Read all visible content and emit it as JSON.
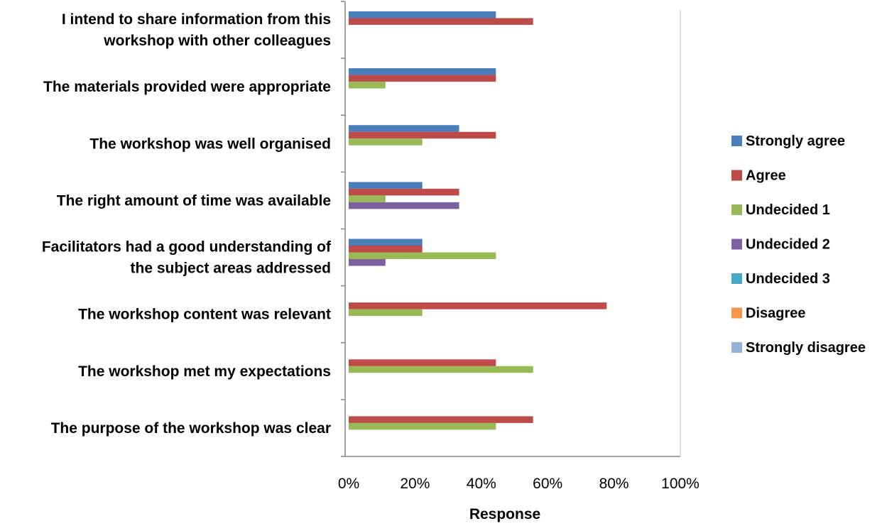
{
  "chart_data": {
    "type": "bar",
    "orientation": "horizontal",
    "title": "",
    "xlabel": "Response",
    "ylabel": "",
    "xlim": [
      0,
      100
    ],
    "x_ticks": [
      "0%",
      "20%",
      "40%",
      "60%",
      "80%",
      "100%"
    ],
    "grid": false,
    "legend_position": "right",
    "categories": [
      [
        "I intend to share information from this",
        "workshop with other colleagues"
      ],
      [
        "The materials provided were appropriate"
      ],
      [
        "The workshop was well organised"
      ],
      [
        "The right amount of time was available"
      ],
      [
        "Facilitators had a good understanding of",
        "the subject areas addressed"
      ],
      [
        "The workshop content was relevant"
      ],
      [
        "The workshop met my expectations"
      ],
      [
        "The purpose of the workshop was clear"
      ]
    ],
    "series": [
      {
        "name": "Strongly agree",
        "color": "#4a7ebb",
        "values": [
          44.4,
          44.4,
          33.3,
          22.2,
          22.2,
          0,
          0,
          0
        ]
      },
      {
        "name": "Agree",
        "color": "#be4b48",
        "values": [
          55.6,
          44.4,
          44.4,
          33.3,
          22.2,
          77.8,
          44.4,
          55.6
        ]
      },
      {
        "name": "Undecided 1",
        "color": "#98b954",
        "values": [
          0,
          11.1,
          22.2,
          11.1,
          44.4,
          22.2,
          55.6,
          44.4
        ]
      },
      {
        "name": "Undecided 2",
        "color": "#7d60a0",
        "values": [
          0,
          0,
          0,
          33.3,
          11.1,
          0,
          0,
          0
        ]
      },
      {
        "name": "Undecided 3",
        "color": "#46aac5",
        "values": [
          0,
          0,
          0,
          0,
          0,
          0,
          0,
          0
        ]
      },
      {
        "name": "Disagree",
        "color": "#f79646",
        "values": [
          0,
          0,
          0,
          0,
          0,
          0,
          0,
          0
        ]
      },
      {
        "name": "Strongly disagree",
        "color": "#95b3d7",
        "values": [
          0,
          0,
          0,
          0,
          0,
          0,
          0,
          0
        ]
      }
    ]
  }
}
